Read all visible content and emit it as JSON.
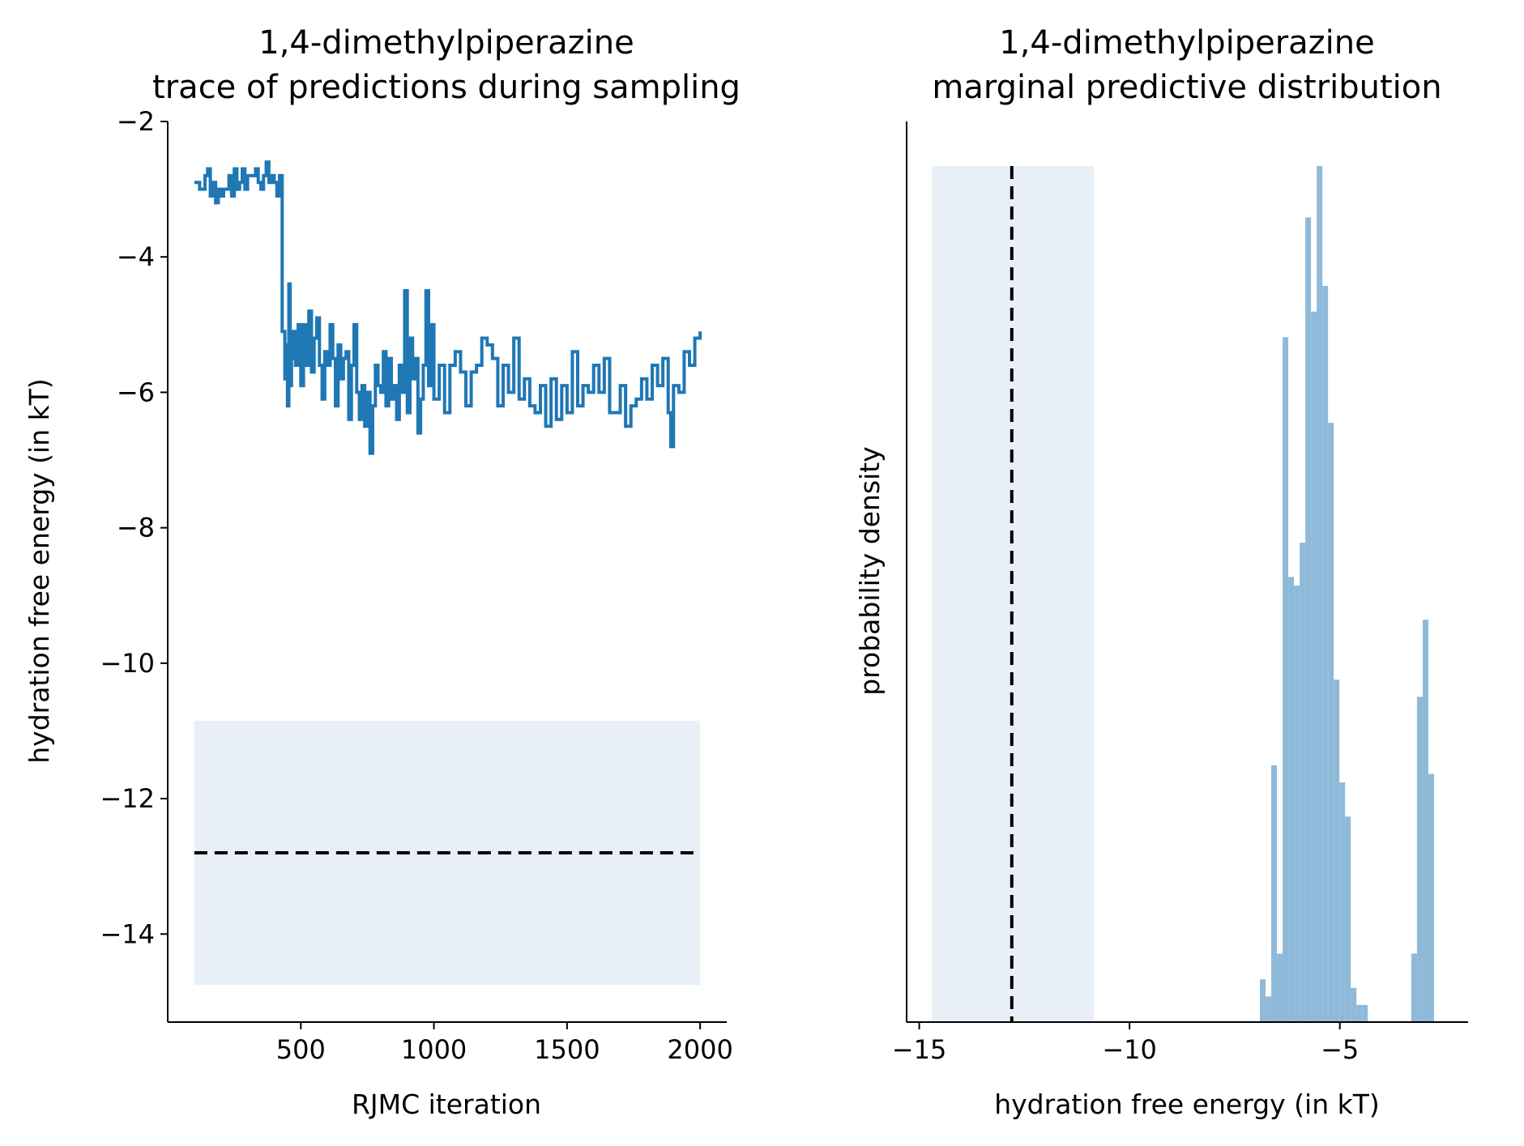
{
  "chart_data": [
    {
      "type": "line",
      "title": "1,4-dimethylpiperazine",
      "subtitle": "trace of predictions during sampling",
      "xlabel": "RJMC iteration",
      "ylabel": "hydration free energy (in kT)",
      "xlim": [
        0,
        2100
      ],
      "ylim": [
        -15.3,
        -2
      ],
      "xticks": [
        500,
        1000,
        1500,
        2000
      ],
      "xtick_labels": [
        "500",
        "1000",
        "1500",
        "2000"
      ],
      "yticks": [
        -2,
        -4,
        -6,
        -8,
        -10,
        -12,
        -14
      ],
      "ytick_labels": [
        "−2",
        "−4",
        "−6",
        "−8",
        "−10",
        "−12",
        "−14"
      ],
      "series_color": "#1f77b4",
      "reference_band": {
        "x": [
          100,
          2000
        ],
        "y": [
          -14.75,
          -10.85
        ],
        "color": "#e8eff7"
      },
      "reference_line": {
        "y": -12.8,
        "x": [
          100,
          2000
        ],
        "style": "dashed",
        "color": "#000000"
      },
      "series": [
        {
          "x": [
            100,
            120,
            140,
            150,
            160,
            170,
            180,
            190,
            200,
            210,
            230,
            240,
            250,
            260,
            270,
            280,
            290,
            300,
            320,
            330,
            340,
            350,
            360,
            370,
            380,
            390,
            400,
            410,
            420,
            430,
            440,
            445,
            450,
            455,
            460,
            465,
            470,
            480,
            490,
            500,
            510,
            520,
            530,
            540,
            550,
            560,
            570,
            580,
            590,
            600,
            610,
            620,
            630,
            640,
            650,
            660,
            670,
            680,
            690,
            700,
            710,
            720,
            730,
            740,
            750,
            760,
            770,
            780,
            790,
            800,
            810,
            820,
            830,
            840,
            850,
            860,
            870,
            880,
            890,
            900,
            910,
            920,
            930,
            940,
            950,
            960,
            970,
            980,
            990,
            1000,
            1020,
            1040,
            1060,
            1080,
            1100,
            1120,
            1140,
            1160,
            1180,
            1200,
            1220,
            1240,
            1260,
            1280,
            1300,
            1320,
            1340,
            1360,
            1380,
            1400,
            1420,
            1440,
            1460,
            1480,
            1500,
            1520,
            1540,
            1560,
            1580,
            1600,
            1620,
            1640,
            1660,
            1680,
            1700,
            1720,
            1740,
            1760,
            1780,
            1800,
            1820,
            1840,
            1860,
            1880,
            1890,
            1900,
            1920,
            1940,
            1960,
            1980,
            2000
          ],
          "y": [
            -2.9,
            -3.0,
            -2.8,
            -2.7,
            -3.1,
            -2.9,
            -3.2,
            -3.0,
            -3.1,
            -3.0,
            -2.8,
            -3.1,
            -2.7,
            -3.0,
            -2.9,
            -2.7,
            -3.0,
            -2.8,
            -2.8,
            -2.7,
            -2.9,
            -3.0,
            -2.8,
            -2.6,
            -2.9,
            -2.8,
            -2.9,
            -3.1,
            -2.8,
            -5.1,
            -5.8,
            -5.3,
            -6.2,
            -4.4,
            -5.9,
            -5.5,
            -5.1,
            -5.6,
            -5.0,
            -5.9,
            -5.0,
            -5.6,
            -4.8,
            -5.7,
            -5.2,
            -4.9,
            -5.6,
            -6.1,
            -5.4,
            -5.6,
            -5.0,
            -5.5,
            -6.2,
            -5.3,
            -5.8,
            -5.5,
            -5.4,
            -6.4,
            -5.6,
            -5.0,
            -6.0,
            -6.4,
            -5.9,
            -6.5,
            -6.0,
            -6.9,
            -6.2,
            -5.6,
            -5.9,
            -6.0,
            -5.4,
            -6.2,
            -5.5,
            -6.1,
            -5.9,
            -6.4,
            -5.6,
            -6.0,
            -4.5,
            -6.3,
            -5.2,
            -5.8,
            -5.5,
            -6.6,
            -6.1,
            -5.6,
            -4.5,
            -5.9,
            -5.0,
            -6.1,
            -5.6,
            -6.3,
            -5.6,
            -5.4,
            -5.7,
            -6.2,
            -5.7,
            -5.6,
            -5.2,
            -5.3,
            -5.5,
            -6.2,
            -5.6,
            -6.0,
            -5.2,
            -6.1,
            -5.8,
            -6.2,
            -6.3,
            -5.9,
            -6.5,
            -5.8,
            -6.4,
            -5.9,
            -6.3,
            -5.4,
            -6.2,
            -5.9,
            -6.0,
            -5.6,
            -6.0,
            -5.5,
            -6.3,
            -6.3,
            -5.9,
            -6.5,
            -6.2,
            -6.1,
            -5.8,
            -6.1,
            -5.6,
            -5.9,
            -5.5,
            -6.3,
            -6.8,
            -5.9,
            -6.0,
            -5.4,
            -5.6,
            -5.2,
            -5.1
          ]
        }
      ]
    },
    {
      "type": "bar",
      "title": "1,4-dimethylpiperazine",
      "subtitle": "marginal predictive distribution",
      "xlabel": "hydration free energy (in kT)",
      "ylabel": "probability density",
      "xlim": [
        -15.3,
        -1.95
      ],
      "ylim": [
        0,
        1.0
      ],
      "xticks": [
        -15,
        -10,
        -5
      ],
      "xtick_labels": [
        "−15",
        "−10",
        "−5"
      ],
      "bar_color": "#8fb9d9",
      "reference_band": {
        "x": [
          -14.7,
          -10.85
        ],
        "color": "#e8eff7"
      },
      "reference_line": {
        "x": -12.8,
        "style": "dashed",
        "color": "#000000"
      },
      "bin_width": 0.135,
      "bin_starts": [
        -6.9,
        -6.765,
        -6.63,
        -6.495,
        -6.36,
        -6.225,
        -6.09,
        -5.955,
        -5.82,
        -5.685,
        -5.55,
        -5.415,
        -5.28,
        -5.145,
        -5.01,
        -4.875,
        -4.74,
        -4.605,
        -4.47,
        -3.3,
        -3.165,
        -3.03,
        -2.895
      ],
      "values": [
        0.05,
        0.03,
        0.3,
        0.08,
        0.8,
        0.52,
        0.51,
        0.56,
        0.94,
        0.83,
        1.0,
        0.86,
        0.7,
        0.4,
        0.28,
        0.24,
        0.04,
        0.02,
        0.02,
        0.08,
        0.38,
        0.47,
        0.29
      ]
    }
  ]
}
